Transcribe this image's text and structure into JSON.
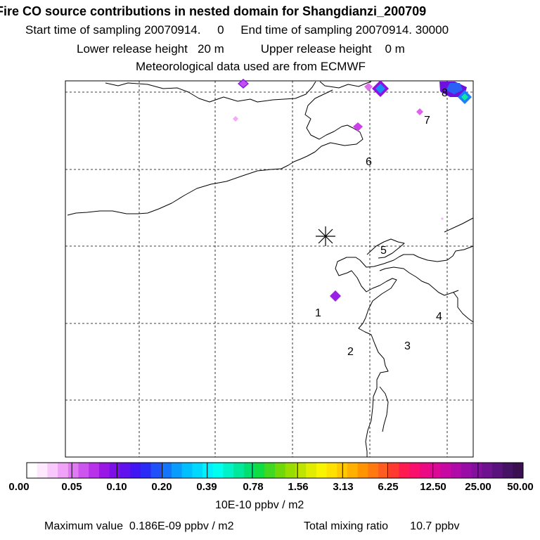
{
  "header": {
    "title": "Fire CO source contributions in nested domain for Shangdianzi_200709",
    "sampling_start_label": "Start time of sampling 20070914.",
    "sampling_start_value": "0",
    "sampling_end_label": "End time of sampling 20070914. 30000",
    "lower_release_label": "Lower release height",
    "lower_release_value": "20 m",
    "upper_release_label": "Upper release height",
    "upper_release_value": "0 m",
    "met_data": "Meteorological data used are from ECMWF"
  },
  "map": {
    "region_labels": [
      "1",
      "2",
      "3",
      "4",
      "5",
      "6",
      "7",
      "8"
    ],
    "station_marker": "*"
  },
  "colorbar": {
    "tick_labels": [
      "0.00",
      "0.05",
      "0.10",
      "0.20",
      "0.39",
      "0.78",
      "1.56",
      "3.13",
      "6.25",
      "12.50",
      "25.00",
      "50.00"
    ],
    "colors": [
      "#ffffff",
      "#fde8fe",
      "#f8c8fb",
      "#f0a2f7",
      "#e07af2",
      "#cc55ee",
      "#b832ea",
      "#9a18e6",
      "#7d10e8",
      "#5f12ee",
      "#4016f2",
      "#2a2cf6",
      "#1f50f8",
      "#1474fa",
      "#0a9cfc",
      "#00bfff",
      "#00d8ff",
      "#00f0ff",
      "#00ffee",
      "#00f2c8",
      "#00e89c",
      "#00e070",
      "#10dc44",
      "#40d820",
      "#70d808",
      "#98dc00",
      "#bee400",
      "#e0ec00",
      "#f8f400",
      "#ffe000",
      "#ffc800",
      "#ffb000",
      "#ff9400",
      "#ff7810",
      "#ff5c20",
      "#ff3a30",
      "#ff1a50",
      "#f8106c",
      "#ec0a84",
      "#dc0896",
      "#c808a2",
      "#b00aa8",
      "#9a0ca6",
      "#84109e",
      "#6e1290",
      "#5a127c",
      "#461264",
      "#3a1050"
    ],
    "unit": "10E-10 ppbv / m2"
  },
  "footer": {
    "max_label": "Maximum value",
    "max_value": "0.186E-09 ppbv / m2",
    "total_label": "Total mixing ratio",
    "total_value": "10.7 ppbv"
  }
}
